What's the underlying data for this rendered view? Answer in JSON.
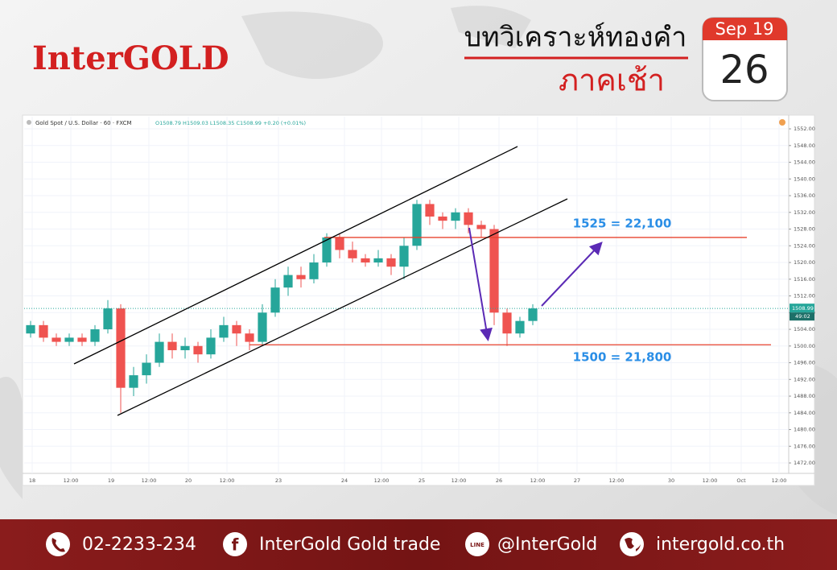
{
  "header": {
    "logo": "InterGOLD",
    "title": "บทวิเคราะห์ทองคำ",
    "subtitle": "ภาคเช้า",
    "month": "Sep 19",
    "day": "26"
  },
  "footer": {
    "phone": "02-2233-234",
    "facebook": "InterGold Gold trade",
    "line_id": "@InterGold",
    "website": "intergold.co.th"
  },
  "chart_data": {
    "type": "candlestick",
    "title": "Gold Spot / U.S. Dollar · 60 · FXCM",
    "ohlc_summary": "O1508.79 H1509.03 L1508.35 C1508.99 +0.20 (+0.01%)",
    "up_color": "#26a69a",
    "down_color": "#ef5350",
    "x": [
      0,
      4,
      8,
      12,
      16,
      20,
      24,
      28,
      32,
      36,
      40,
      44,
      48,
      52,
      56,
      60,
      64,
      68,
      72,
      76,
      80,
      84,
      88,
      92,
      96,
      100,
      104,
      108,
      112,
      116,
      120,
      124,
      128,
      132,
      136,
      140,
      144,
      148,
      152,
      156
    ],
    "open": [
      1503,
      1505,
      1502,
      1501,
      1502,
      1501,
      1504,
      1509,
      1490,
      1493,
      1496,
      1501,
      1499,
      1500,
      1498,
      1502,
      1505,
      1503,
      1501,
      1508,
      1514,
      1517,
      1516,
      1520,
      1526,
      1523,
      1521,
      1520,
      1521,
      1519,
      1524,
      1534,
      1531,
      1530,
      1532,
      1529,
      1528,
      1508,
      1503,
      1506
    ],
    "close": [
      1505,
      1502,
      1501,
      1502,
      1501,
      1504,
      1509,
      1490,
      1493,
      1496,
      1501,
      1499,
      1500,
      1498,
      1502,
      1505,
      1503,
      1501,
      1508,
      1514,
      1517,
      1516,
      1520,
      1526,
      1523,
      1521,
      1520,
      1521,
      1519,
      1524,
      1534,
      1531,
      1530,
      1532,
      1529,
      1528,
      1508,
      1503,
      1506,
      1509
    ],
    "high": [
      1506,
      1506,
      1503,
      1503,
      1503,
      1505,
      1511,
      1510,
      1495,
      1498,
      1503,
      1503,
      1502,
      1501,
      1504,
      1507,
      1506,
      1504,
      1510,
      1516,
      1519,
      1519,
      1522,
      1527,
      1527,
      1525,
      1522,
      1523,
      1522,
      1526,
      1535,
      1535,
      1532,
      1533,
      1533,
      1530,
      1529,
      1509,
      1507,
      1510
    ],
    "low": [
      1502,
      1501,
      1500,
      1500,
      1500,
      1500,
      1503,
      1484,
      1488,
      1491,
      1495,
      1497,
      1497,
      1496,
      1497,
      1501,
      1500,
      1499,
      1500,
      1507,
      1512,
      1514,
      1515,
      1519,
      1521,
      1520,
      1519,
      1519,
      1517,
      1516,
      1523,
      1529,
      1528,
      1528,
      1527,
      1526,
      1505,
      1500,
      1502,
      1505
    ],
    "xlim": [
      0,
      237.5
    ],
    "xticks": [
      {
        "value": 2.5,
        "label": "18"
      },
      {
        "value": 14.5,
        "label": "12:00"
      },
      {
        "value": 27,
        "label": "19"
      },
      {
        "value": 38.75,
        "label": "12:00"
      },
      {
        "value": 51,
        "label": "20"
      },
      {
        "value": 63,
        "label": "12:00"
      },
      {
        "value": 79,
        "label": "23"
      },
      {
        "value": 99.5,
        "label": "24"
      },
      {
        "value": 111,
        "label": "12:00"
      },
      {
        "value": 123.5,
        "label": "25"
      },
      {
        "value": 135,
        "label": "12:00"
      },
      {
        "value": 147.5,
        "label": "26"
      },
      {
        "value": 159.5,
        "label": "12:00"
      },
      {
        "value": 171.75,
        "label": "27"
      },
      {
        "value": 184,
        "label": "12:00"
      },
      {
        "value": 201,
        "label": "30"
      },
      {
        "value": 213,
        "label": "12:00"
      },
      {
        "value": 222.75,
        "label": "Oct"
      },
      {
        "value": 234.5,
        "label": "12:00"
      }
    ],
    "ylim": [
      1469.5,
      1554.9
    ],
    "yticks": [
      {
        "value": 1472,
        "label": "1472.00"
      },
      {
        "value": 1476,
        "label": "1476.00"
      },
      {
        "value": 1480,
        "label": "1480.00"
      },
      {
        "value": 1484,
        "label": "1484.00"
      },
      {
        "value": 1488,
        "label": "1488.00"
      },
      {
        "value": 1492,
        "label": "1492.00"
      },
      {
        "value": 1496,
        "label": "1496.00"
      },
      {
        "value": 1500,
        "label": "1500.00"
      },
      {
        "value": 1504,
        "label": "1504.00"
      },
      {
        "value": 1508,
        "label": "1508.00"
      },
      {
        "value": 1512,
        "label": "1512.00"
      },
      {
        "value": 1516,
        "label": "1516.00"
      },
      {
        "value": 1520,
        "label": "1520.00"
      },
      {
        "value": 1524,
        "label": "1524.00"
      },
      {
        "value": 1528,
        "label": "1528.00"
      },
      {
        "value": 1532,
        "label": "1532.00"
      },
      {
        "value": 1536,
        "label": "1536.00"
      },
      {
        "value": 1540,
        "label": "1540.00"
      },
      {
        "value": 1544,
        "label": "1544.00"
      },
      {
        "value": 1548,
        "label": "1548.00"
      },
      {
        "value": 1552,
        "label": "1552.00"
      }
    ],
    "grid": true,
    "last_price": 1508.99,
    "countdown": "49:02",
    "levels": [
      {
        "value": 1526,
        "x_range": [
          93.25,
          224.5
        ],
        "label": "1525 = 22,100"
      },
      {
        "value": 1500.3,
        "x_range": [
          70,
          232
        ],
        "label": "1500 = 21,800"
      }
    ]
  }
}
